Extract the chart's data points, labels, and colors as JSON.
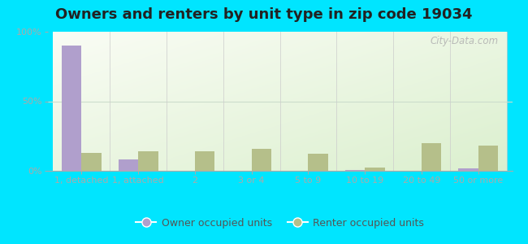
{
  "title": "Owners and renters by unit type in zip code 19034",
  "categories": [
    "1, detached",
    "1, attached",
    "2",
    "3 or 4",
    "5 to 9",
    "10 to 19",
    "20 to 49",
    "50 or more"
  ],
  "owner_values": [
    90,
    8,
    0,
    0,
    0,
    0.8,
    0,
    2
  ],
  "renter_values": [
    13,
    14,
    14,
    16,
    12,
    2.5,
    20,
    18
  ],
  "owner_color": "#b09fcc",
  "renter_color": "#b5bf8a",
  "background_outer": "#00e5ff",
  "ylabel_ticks": [
    "0%",
    "50%",
    "100%"
  ],
  "ytick_values": [
    0,
    50,
    100
  ],
  "bar_width": 0.35,
  "legend_labels": [
    "Owner occupied units",
    "Renter occupied units"
  ],
  "watermark": "City-Data.com",
  "title_fontsize": 13,
  "tick_fontsize": 8,
  "legend_fontsize": 9,
  "grid_color": "#ccddcc",
  "axis_bg_colors": [
    "#e8f5e0",
    "#f5faf2"
  ]
}
